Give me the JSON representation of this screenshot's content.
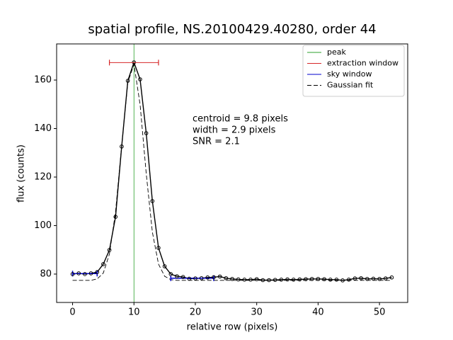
{
  "chart_data": {
    "type": "line",
    "title": "spatial profile, NS.20100429.40280, order 44",
    "x_label": "relative row (pixels)",
    "y_label": "flux (counts)",
    "x": [
      0,
      1,
      2,
      3,
      4,
      5,
      6,
      7,
      8,
      9,
      10,
      11,
      12,
      13,
      14,
      15,
      16,
      17,
      18,
      19,
      20,
      21,
      22,
      23,
      24,
      25,
      26,
      27,
      28,
      29,
      30,
      31,
      32,
      33,
      34,
      35,
      36,
      37,
      38,
      39,
      40,
      41,
      42,
      43,
      44,
      45,
      46,
      47,
      48,
      49,
      50,
      51,
      52
    ],
    "series": [
      {
        "color": "#000000",
        "marker": "circle",
        "dashed": false,
        "values": [
          80.0,
          80.3,
          80.0,
          80.3,
          80.8,
          84.1,
          89.9,
          103.6,
          132.6,
          159.7,
          167.3,
          160.3,
          138.1,
          110.1,
          90.8,
          83.2,
          80.0,
          79.1,
          78.8,
          78.1,
          78.2,
          78.3,
          78.6,
          78.7,
          79.0,
          78.3,
          78.0,
          77.8,
          77.7,
          77.7,
          77.9,
          77.5,
          77.5,
          77.6,
          77.7,
          77.8,
          77.7,
          77.8,
          77.9,
          78.0,
          78.0,
          77.9,
          77.7,
          77.7,
          77.4,
          77.7,
          78.2,
          78.3,
          78.0,
          78.1,
          78.0,
          78.2,
          78.6
        ]
      },
      {
        "name": "Gaussian fit",
        "color": "#000000",
        "dashed": true,
        "values": [
          77.4,
          77.4,
          77.4,
          77.4,
          78.0,
          80.4,
          88.2,
          105.7,
          133.0,
          159.0,
          166.5,
          149.9,
          121.4,
          97.3,
          84.1,
          79.1,
          77.7,
          77.4,
          77.4,
          77.4,
          77.4,
          77.4,
          77.4,
          77.4,
          77.4,
          77.4,
          77.4,
          77.4,
          77.4,
          77.4,
          77.4,
          77.4,
          77.4,
          77.4,
          77.4,
          77.4,
          77.4,
          77.4,
          77.4,
          77.4,
          77.4,
          77.4,
          77.4,
          77.4,
          77.4,
          77.4,
          77.4,
          77.4,
          77.4,
          77.4,
          77.4,
          77.4,
          77.4
        ]
      }
    ],
    "peak": {
      "name": "peak",
      "color": "#2ca02c",
      "x": 10
    },
    "extraction_window": {
      "name": "extraction window",
      "color": "#d62728",
      "x": [
        6,
        14
      ],
      "y": 167.2
    },
    "sky_window": {
      "name": "sky window",
      "color": "#0000cc",
      "segments": [
        {
          "x": [
            0,
            4
          ],
          "y": 80.2
        },
        {
          "x": [
            16,
            23
          ],
          "y": 78.3
        }
      ]
    },
    "annotations": [
      "centroid = 9.8 pixels",
      "width = 2.9 pixels",
      "SNR = 2.1"
    ],
    "xlim": [
      -2.6,
      54.6
    ],
    "ylim": [
      68.3,
      174.9
    ],
    "xticks": [
      0,
      10,
      20,
      30,
      40,
      50
    ],
    "yticks": [
      80,
      100,
      120,
      140,
      160
    ],
    "legend": "upper right"
  }
}
